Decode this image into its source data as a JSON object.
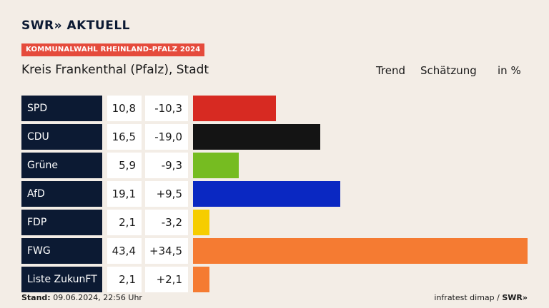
{
  "brand": {
    "logo": "SWR» AKTUELL",
    "footer_logo": "SWR»"
  },
  "kicker": "KOMMUNALWAHL RHEINLAND-PFALZ 2024",
  "place": "Kreis Frankenthal (Pfalz), Stadt",
  "headers": {
    "trend": "Trend",
    "estimate": "Schätzung",
    "unit": "in %"
  },
  "footer": {
    "stand_label": "Stand:",
    "stand_value": "09.06.2024, 22:56 Uhr",
    "source": "infratest dimap /"
  },
  "colors": {
    "accent": "#e54b3c",
    "label_bg": "#0c1a33",
    "background": "#f3ede6"
  },
  "rows": [
    {
      "party": "SPD",
      "trend": "10,8",
      "diff": "-10,3",
      "color": "#d72a22"
    },
    {
      "party": "CDU",
      "trend": "16,5",
      "diff": "-19,0",
      "color": "#141414"
    },
    {
      "party": "Grüne",
      "trend": "5,9",
      "diff": "-9,3",
      "color": "#76bc21"
    },
    {
      "party": "AfD",
      "trend": "19,1",
      "diff": "+9,5",
      "color": "#0a28c2"
    },
    {
      "party": "FDP",
      "trend": "2,1",
      "diff": "-3,2",
      "color": "#f6cd00"
    },
    {
      "party": "FWG",
      "trend": "43,4",
      "diff": "+34,5",
      "color": "#f57b32"
    },
    {
      "party": "Liste ZukunFT",
      "trend": "2,1",
      "diff": "+2,1",
      "color": "#f57b32"
    }
  ],
  "chart_data": {
    "type": "bar",
    "categories": [
      "SPD",
      "CDU",
      "Grüne",
      "AfD",
      "FDP",
      "FWG",
      "Liste ZukunFT"
    ],
    "values": [
      10.8,
      16.5,
      5.9,
      19.1,
      2.1,
      43.4,
      2.1
    ],
    "changes": [
      -10.3,
      -19.0,
      -9.3,
      9.5,
      -3.2,
      34.5,
      2.1
    ],
    "ylabel": "in %",
    "orientation": "horizontal"
  }
}
